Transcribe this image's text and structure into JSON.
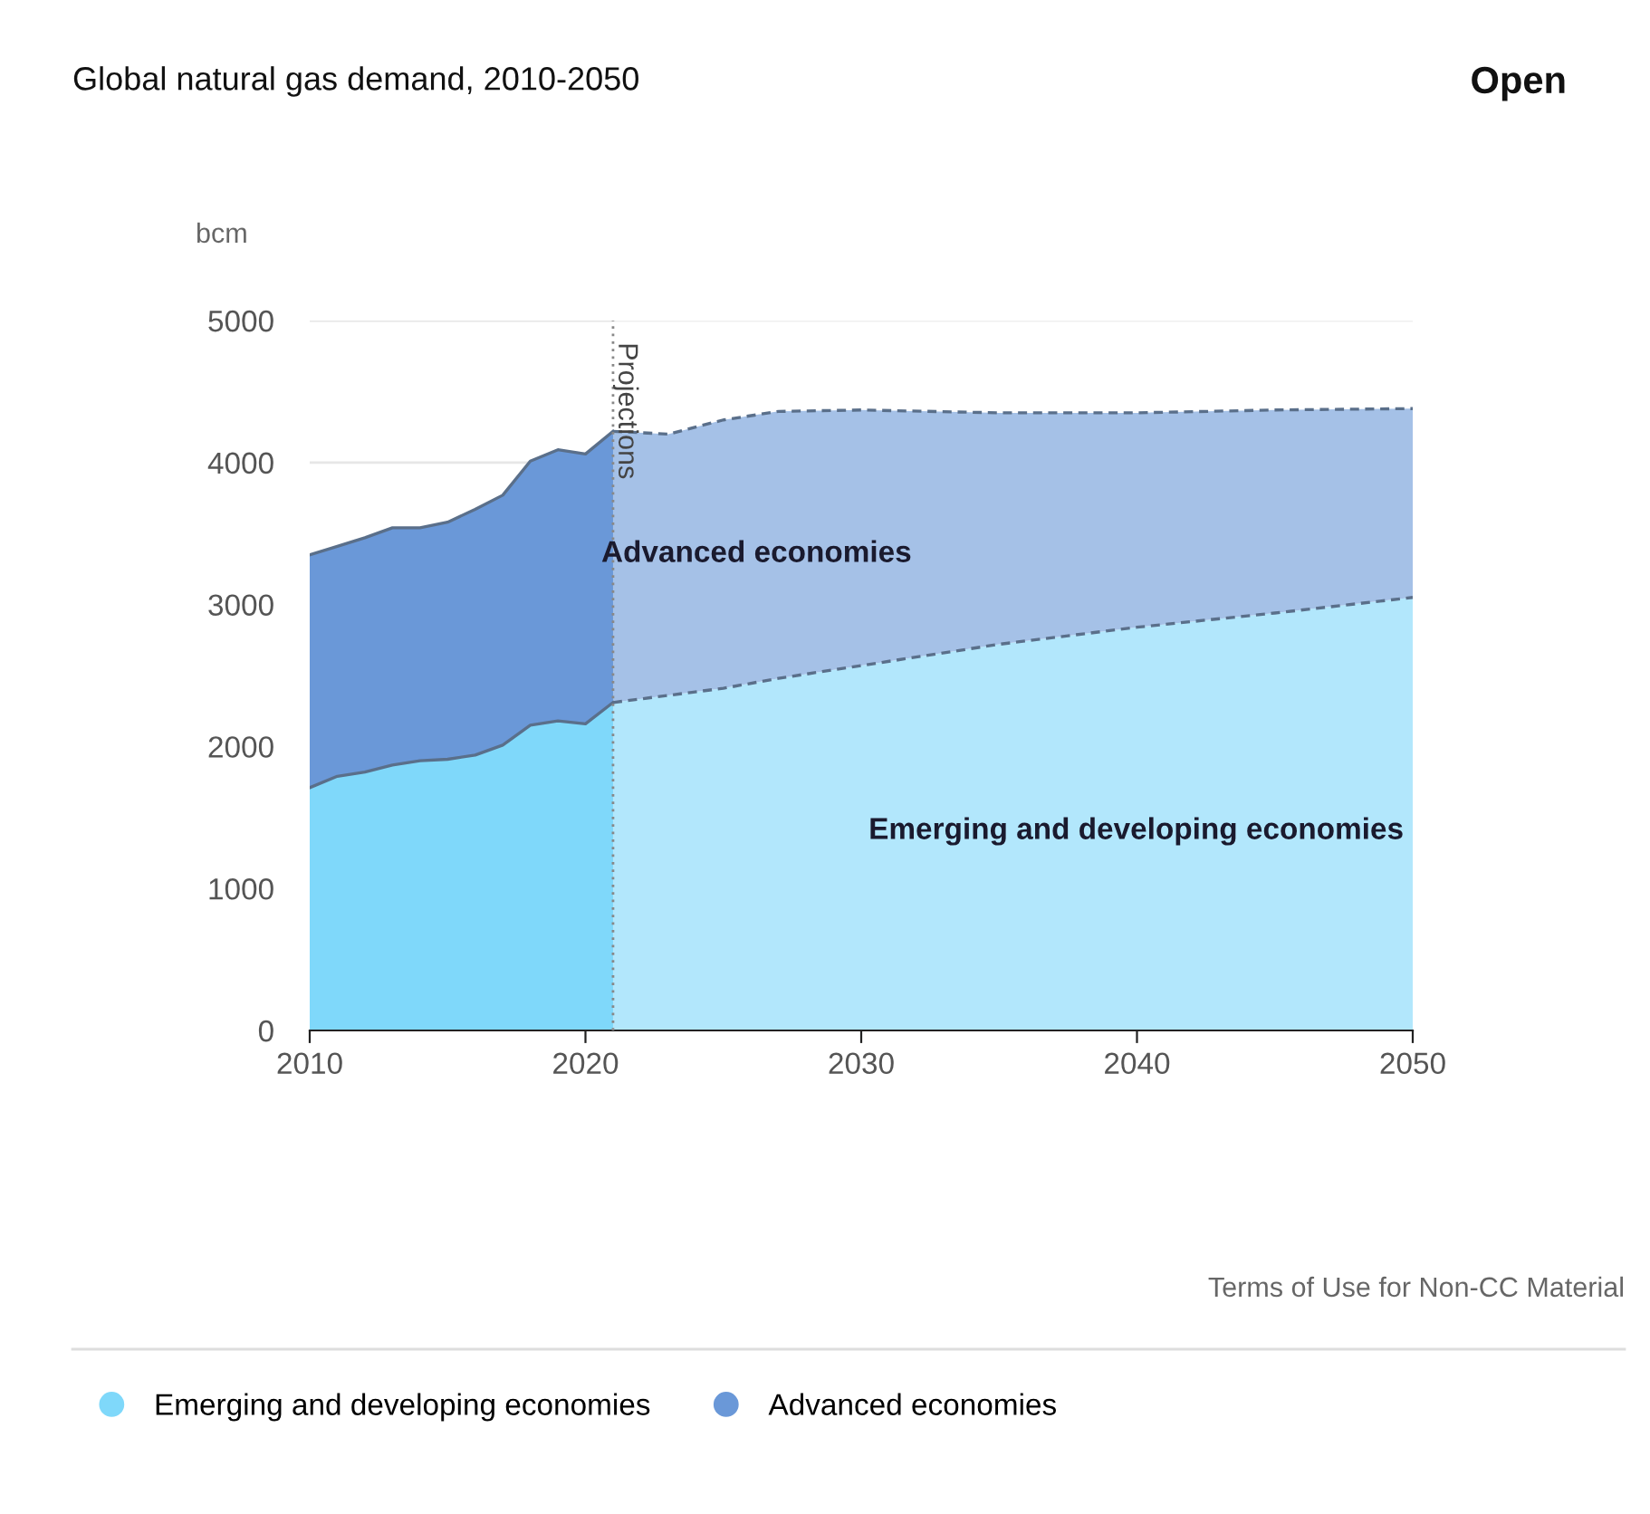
{
  "chart_data": {
    "type": "area",
    "title": "Global natural gas demand, 2010-2050",
    "ylabel": "bcm",
    "stacked": true,
    "x": [
      2010,
      2011,
      2012,
      2013,
      2014,
      2015,
      2016,
      2017,
      2018,
      2019,
      2020,
      2021,
      2023,
      2025,
      2027,
      2030,
      2035,
      2040,
      2045,
      2050
    ],
    "series": [
      {
        "name": "Emerging and developing economies",
        "color": "#7fd8fa",
        "values": [
          1710,
          1790,
          1820,
          1870,
          1900,
          1910,
          1940,
          2010,
          2150,
          2180,
          2160,
          2310,
          2360,
          2410,
          2480,
          2570,
          2720,
          2840,
          2940,
          3050
        ]
      },
      {
        "name": "Advanced economies",
        "color": "#6a98d8",
        "values": [
          1640,
          1620,
          1650,
          1670,
          1640,
          1670,
          1730,
          1760,
          1860,
          1910,
          1900,
          1910,
          1840,
          1890,
          1880,
          1800,
          1630,
          1510,
          1430,
          1330
        ]
      }
    ],
    "xlim": [
      2010,
      2050
    ],
    "xticks": [
      2010,
      2020,
      2030,
      2040,
      2050
    ],
    "ylim": [
      0,
      5000
    ],
    "yticks": [
      0,
      1000,
      2000,
      3000,
      4000,
      5000
    ],
    "grid": "y",
    "legend": "bottom",
    "ref_lines": [
      {
        "axis": "x",
        "value": 2021,
        "label": "Projections",
        "line_style": "dotted",
        "color": "#888888"
      }
    ],
    "bands": [
      {
        "axis": "x",
        "from": 2021,
        "to": 2050,
        "color": "#ffffff"
      }
    ],
    "annotations": [
      "Advanced economies",
      "Emerging and developing economies",
      "Terms of Use for Non-CC Material",
      "Open"
    ]
  }
}
